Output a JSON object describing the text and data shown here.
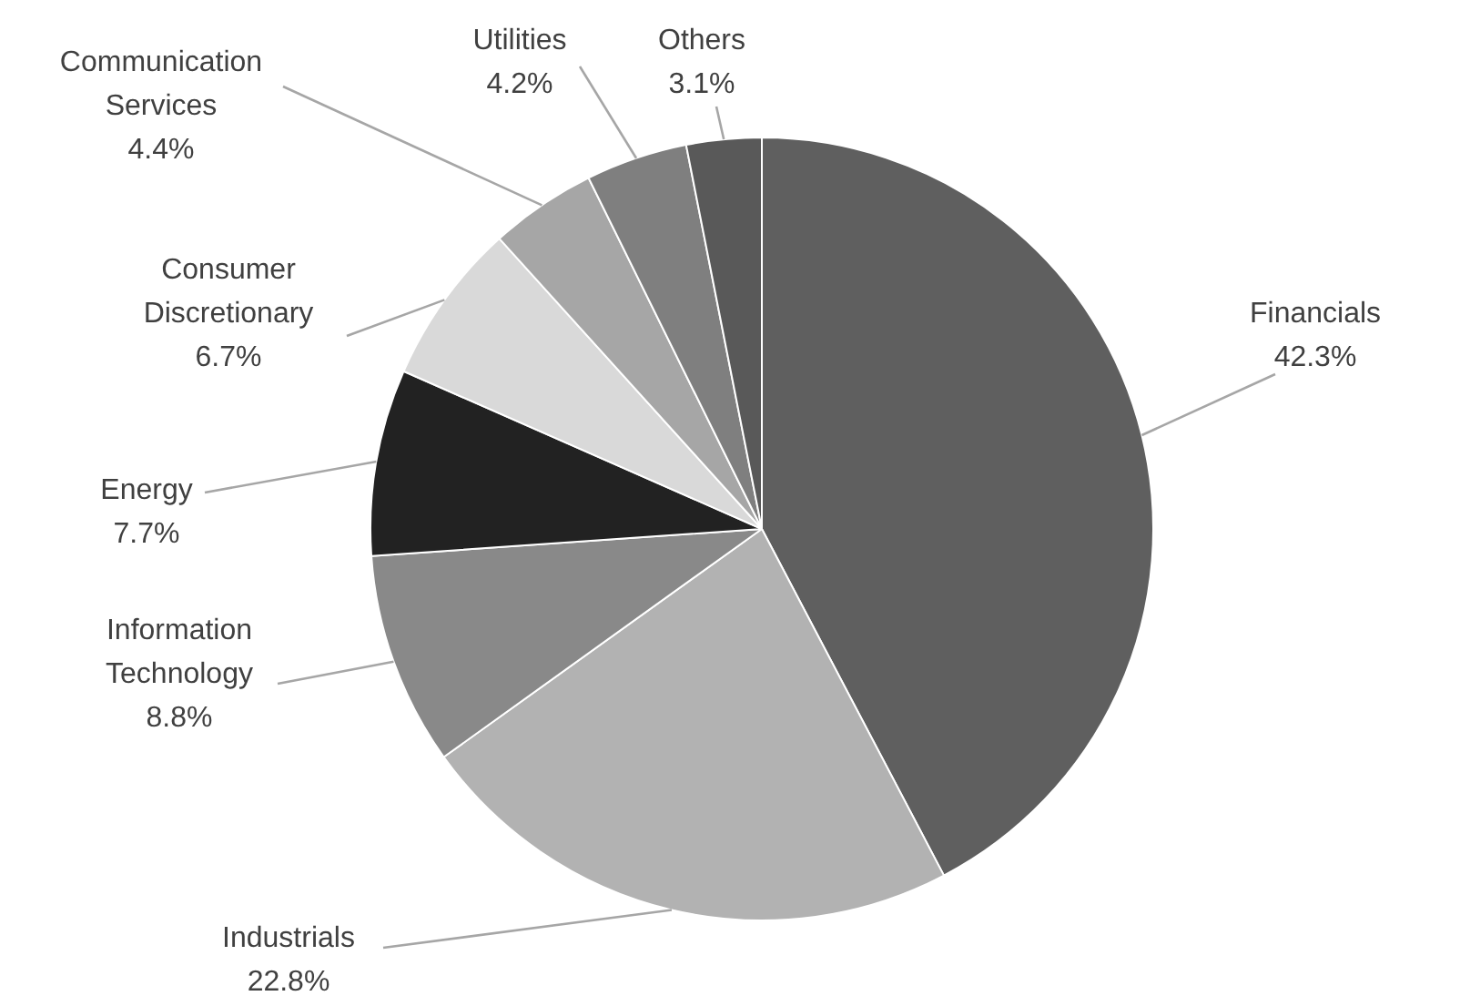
{
  "chart_data": {
    "type": "pie",
    "categories": [
      "Financials",
      "Industrials",
      "Information Technology",
      "Energy",
      "Consumer Discretionary",
      "Communication Services",
      "Utilities",
      "Others"
    ],
    "values": [
      42.3,
      22.8,
      8.8,
      7.7,
      6.7,
      4.4,
      4.2,
      3.1
    ],
    "value_labels": [
      "42.3%",
      "22.8%",
      "8.8%",
      "7.7%",
      "6.7%",
      "4.4%",
      "4.2%",
      "3.1%"
    ],
    "colors": [
      "#5f5f5f",
      "#b2b2b2",
      "#898989",
      "#222222",
      "#d9d9d9",
      "#a6a6a6",
      "#7f7f7f",
      "#595959"
    ]
  }
}
